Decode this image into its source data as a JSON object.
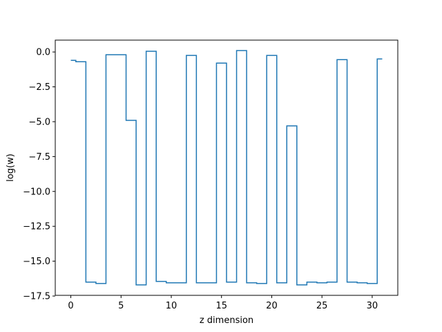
{
  "chart_data": {
    "type": "line",
    "drawstyle": "steps-mid",
    "xlabel": "z dimension",
    "ylabel": "log(w)",
    "xlim": [
      -1.55,
      32.55
    ],
    "ylim": [
      -17.45,
      0.85
    ],
    "xticks": [
      0,
      5,
      10,
      15,
      20,
      25,
      30
    ],
    "xtick_labels": [
      "0",
      "5",
      "10",
      "15",
      "20",
      "25",
      "30"
    ],
    "yticks": [
      0.0,
      -2.5,
      -5.0,
      -7.5,
      -10.0,
      -12.5,
      -15.0,
      -17.5
    ],
    "ytick_labels": [
      "0.0",
      "−2.5",
      "−5.0",
      "−7.5",
      "−10.0",
      "−12.5",
      "−15.0",
      "−17.5"
    ],
    "grid": false,
    "series": [
      {
        "color": "#1f77b4",
        "x": [
          0,
          1,
          2,
          3,
          4,
          5,
          6,
          7,
          8,
          9,
          10,
          11,
          12,
          13,
          14,
          15,
          16,
          17,
          18,
          19,
          20,
          21,
          22,
          23,
          24,
          25,
          26,
          27,
          28,
          29,
          30,
          31
        ],
        "y": [
          -0.6,
          -0.7,
          -16.5,
          -16.6,
          -0.2,
          -0.2,
          -4.9,
          -16.7,
          0.05,
          -16.45,
          -16.55,
          -16.55,
          -0.25,
          -16.55,
          -16.55,
          -0.8,
          -16.5,
          0.1,
          -16.55,
          -16.6,
          -0.25,
          -16.55,
          -5.3,
          -16.7,
          -16.5,
          -16.55,
          -16.5,
          -0.55,
          -16.5,
          -16.55,
          -16.6,
          -0.5
        ]
      }
    ]
  }
}
